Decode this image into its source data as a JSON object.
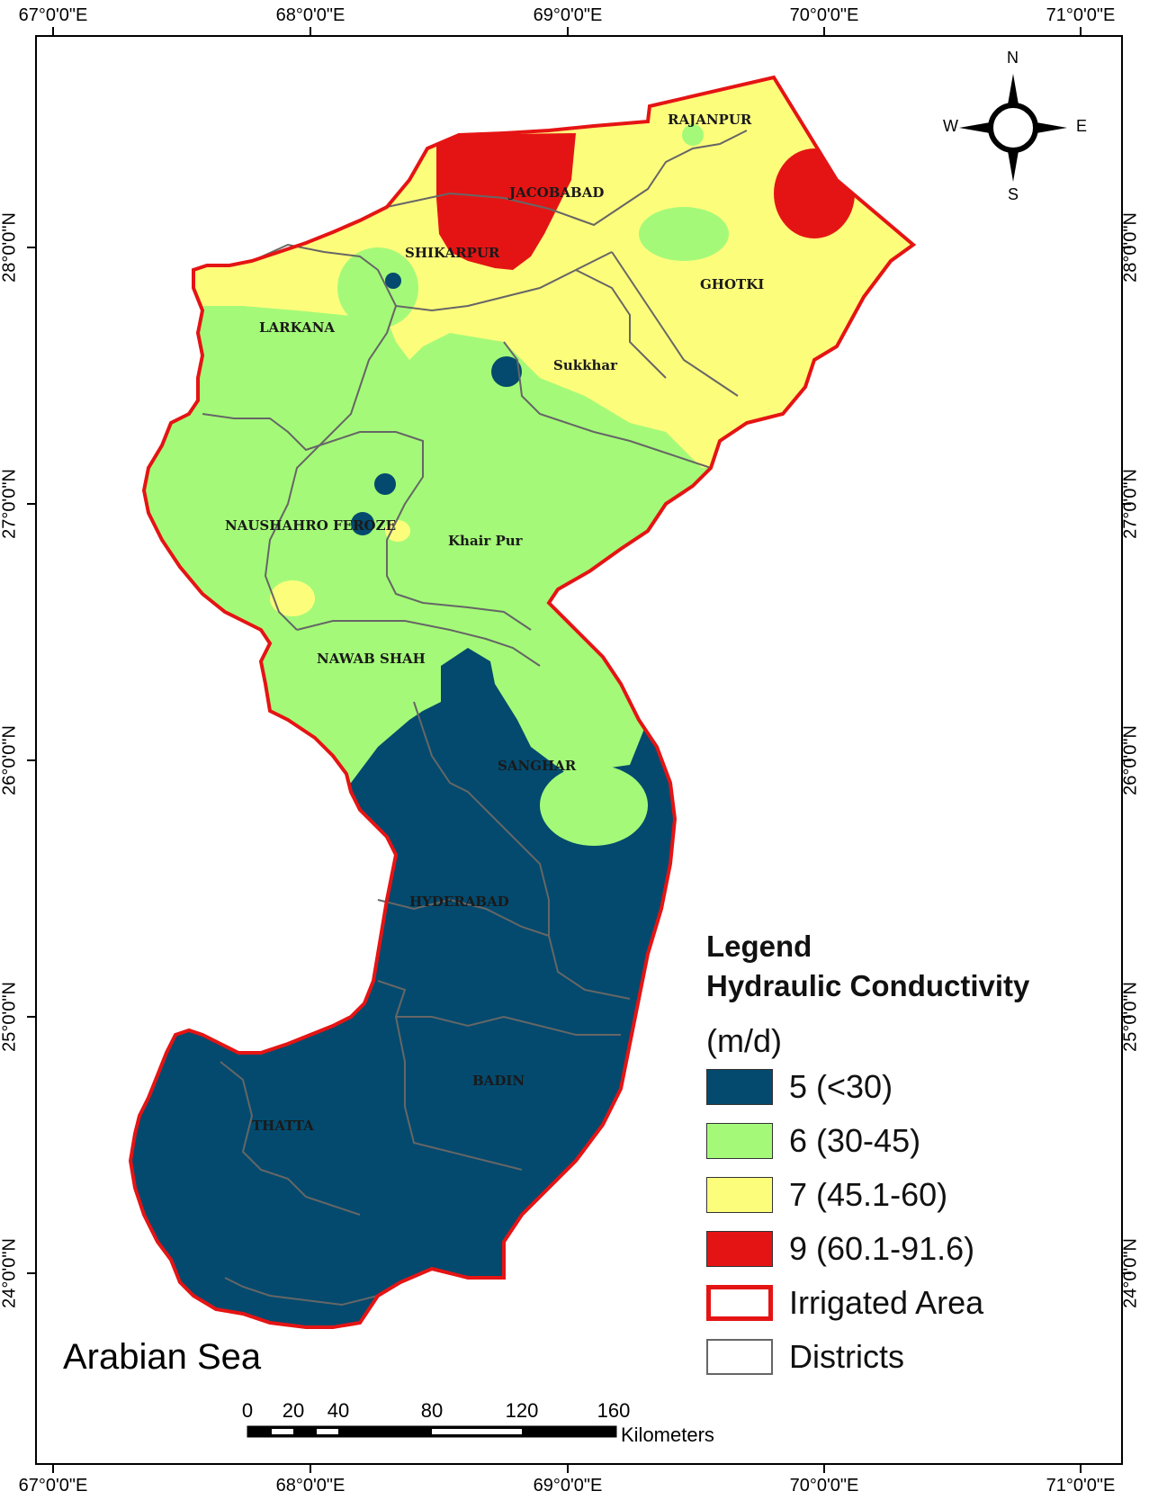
{
  "axes": {
    "longitude_labels": [
      "67°0'0\"E",
      "68°0'0\"E",
      "69°0'0\"E",
      "70°0'0\"E",
      "71°0'0\"E"
    ],
    "latitude_labels": [
      "28°0'0\"N",
      "27°0'0\"N",
      "26°0'0\"N",
      "25°0'0\"N",
      "24°0'0\"N"
    ]
  },
  "compass": {
    "n": "N",
    "s": "S",
    "e": "E",
    "w": "W"
  },
  "districts": {
    "rajanpur": "RAJANPUR",
    "jacobabad": "JACOBABAD",
    "shikarpur": "SHIKARPUR",
    "ghotki": "GHOTKI",
    "larkana": "LARKANA",
    "sukkhar": "Sukkhar",
    "naushahro_feroze": "NAUSHAHRO FEROZE",
    "khair_pur": "Khair Pur",
    "nawab_shah": "NAWAB SHAH",
    "sanghar": "SANGHAR",
    "hyderabad": "HYDERABAD",
    "badin": "BADIN",
    "thatta": "THATTA"
  },
  "sea_label": "Arabian Sea",
  "legend": {
    "title": "Legend",
    "subtitle": "Hydraulic Conductivity",
    "unit": "(m/d)",
    "classes": [
      {
        "label": "5 (<30)",
        "color": "#034a6e"
      },
      {
        "label": "6 (30-45)",
        "color": "#a4fa78"
      },
      {
        "label": "7 (45.1-60)",
        "color": "#fdfd7c"
      },
      {
        "label": "9 (60.1-91.6)",
        "color": "#e51414"
      }
    ],
    "irrigated_label": "Irrigated Area",
    "districts_label": "Districts",
    "irrigated_color": "#e51414"
  },
  "scale_bar": {
    "numbers": [
      "0",
      "20",
      "40",
      "80",
      "120",
      "160"
    ],
    "unit": "Kilometers"
  }
}
